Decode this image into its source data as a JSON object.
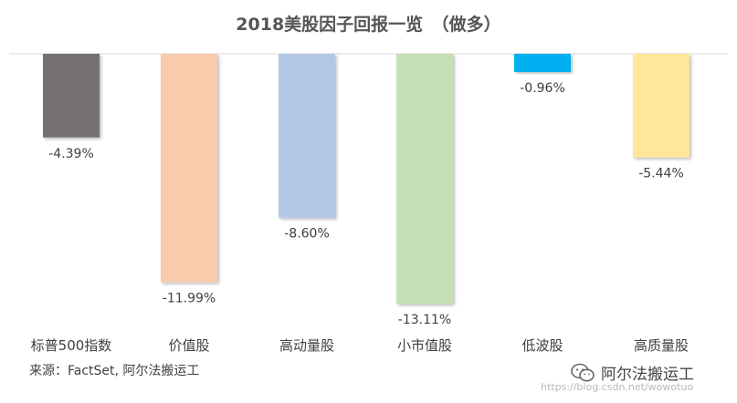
{
  "chart_data": {
    "type": "bar",
    "title": "2018美股因子回报一览　（做多）",
    "categories": [
      "标普500指数",
      "价值股",
      "高动量股",
      "小市值股",
      "低波股",
      "高质量股"
    ],
    "values": [
      -4.39,
      -11.99,
      -8.6,
      -13.11,
      -0.96,
      -5.44
    ],
    "value_labels": [
      "-4.39%",
      "-11.99%",
      "-8.60%",
      "-13.11%",
      "-0.96%",
      "-5.44%"
    ],
    "colors": [
      "#767171",
      "#F8CBAD",
      "#B4C7E7",
      "#C5E0B4",
      "#00B0F0",
      "#FFE699"
    ],
    "ylim": [
      -14,
      0
    ],
    "grid": false,
    "legend": "none"
  },
  "footer": {
    "source": "来源：FactSet, 阿尔法搬运工"
  },
  "watermark": {
    "brand": "阿尔法搬运工",
    "url": "https://blog.csdn.net/wowotuo",
    "icon": "wechat-icon"
  }
}
